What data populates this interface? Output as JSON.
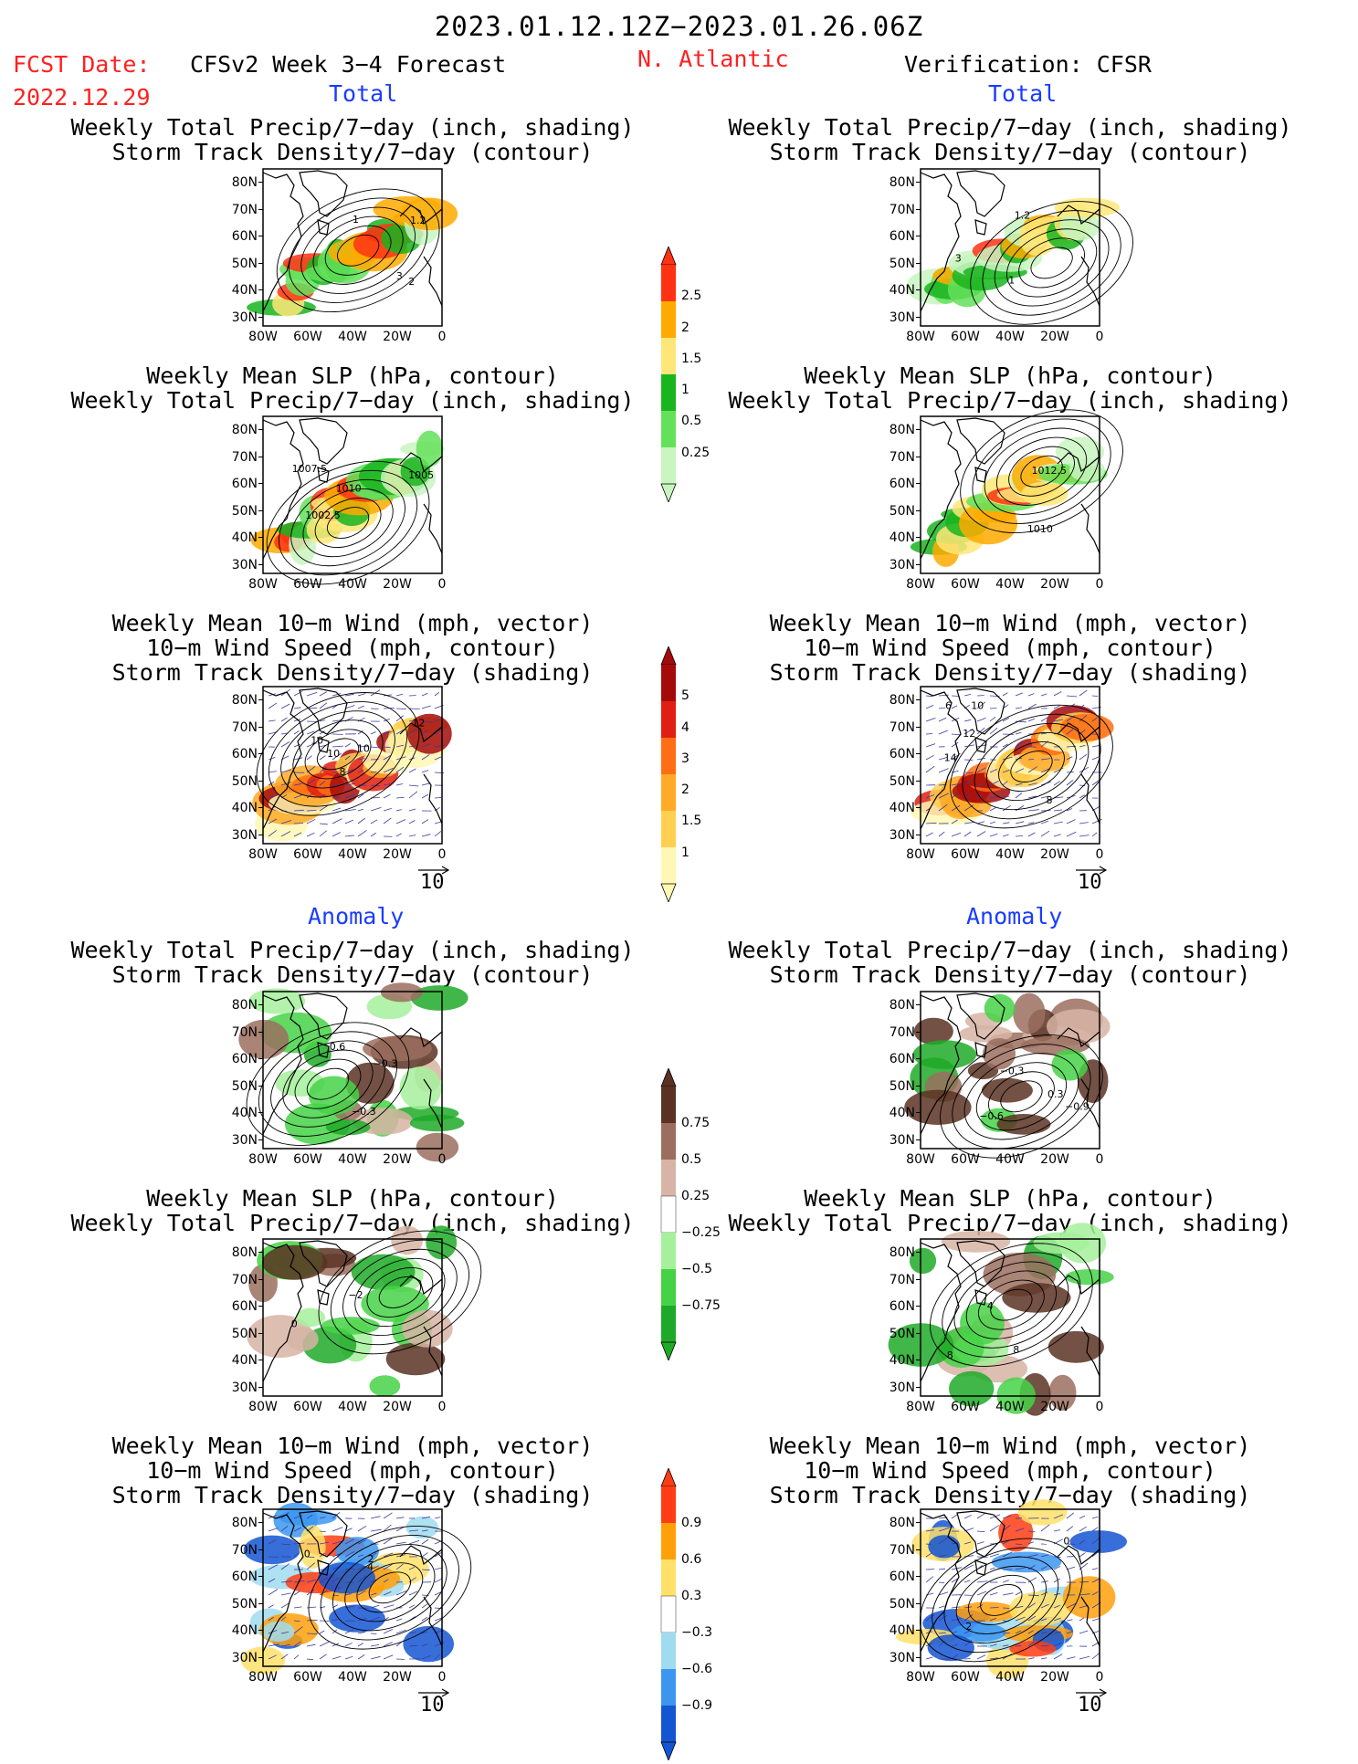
{
  "header": {
    "date_range": "2023.01.12.12Z−2023.01.26.06Z",
    "fcst_label": "FCST Date:",
    "fcst_date": "2022.12.29",
    "forecast_title": "CFSv2 Week 3−4 Forecast",
    "region": "N. Atlantic",
    "verification": "Verification: CFSR"
  },
  "section_labels": {
    "total": "Total",
    "anomaly": "Anomaly"
  },
  "panel_titles": {
    "precip_storm": [
      "Weekly Total Precip/7−day (inch, shading)",
      "Storm Track Density/7−day (contour)"
    ],
    "slp_precip": [
      "Weekly Mean SLP (hPa, contour)",
      "Weekly Total Precip/7−day (inch, shading)"
    ],
    "wind_storm": [
      "Weekly Mean 10−m Wind (mph, vector)",
      "10−m Wind Speed (mph, contour)",
      "Storm Track Density/7−day (shading)"
    ]
  },
  "axes": {
    "x_ticks": [
      "80W",
      "60W",
      "40W",
      "20W",
      "0"
    ],
    "y_ticks": [
      "80N",
      "70N",
      "60N",
      "50N",
      "40N",
      "30N"
    ]
  },
  "vector_reference": "10",
  "colors": {
    "red_text": "#ff2020",
    "blue_text": "#1a3cff",
    "precip_total": [
      "#c8f5c0",
      "#64e15a",
      "#19b41e",
      "#ffe678",
      "#ffaa00",
      "#ff3214"
    ],
    "storm_total": [
      "#fff8b4",
      "#ffd050",
      "#ffaa28",
      "#ff6e14",
      "#e11e14",
      "#a50a0a"
    ],
    "precip_anom": [
      "#5a3223",
      "#9b6e5f",
      "#d7b4a5",
      "#ffffff",
      "#a5f09b",
      "#46d246",
      "#1eaa28"
    ],
    "storm_anom": [
      "#1455d2",
      "#3c96f0",
      "#a0dcf0",
      "#ffffff",
      "#ffe169",
      "#ffa00a",
      "#ff3c14"
    ]
  },
  "colorbars": [
    {
      "name": "precip-total",
      "labels": [
        "2.5",
        "2",
        "1.5",
        "1",
        "0.5",
        "0.25"
      ]
    },
    {
      "name": "storm-density-total",
      "labels": [
        "5",
        "4",
        "3",
        "2",
        "1.5",
        "1"
      ]
    },
    {
      "name": "precip-anomaly",
      "labels": [
        "0.75",
        "0.5",
        "0.25",
        "−0.25",
        "−0.5",
        "−0.75"
      ]
    },
    {
      "name": "storm-density-anomaly",
      "labels": [
        "0.9",
        "0.6",
        "0.3",
        "−0.3",
        "−0.6",
        "−0.9"
      ]
    }
  ],
  "contour_labels": {
    "fc_total_precip": [
      "3",
      "1.2",
      "2",
      "1"
    ],
    "obs_total_precip": [
      "3",
      "1",
      "1.2"
    ],
    "fc_total_slp": [
      "1010",
      "1007.5",
      "1002.5",
      "1005"
    ],
    "obs_total_slp": [
      "1012.5",
      "1010"
    ],
    "fc_total_wind": [
      "12",
      "10",
      "8",
      "10",
      "10"
    ],
    "obs_total_wind": [
      "10",
      "8",
      "6",
      "14",
      "12"
    ],
    "fc_anom_precip": [
      "−0.3",
      "0.6",
      "−0.3"
    ],
    "obs_anom_precip": [
      "0.3",
      "−0.9",
      "−0.6",
      "−0.3"
    ],
    "fc_anom_slp": [
      "0",
      "−2"
    ],
    "obs_anom_slp": [
      "4",
      "8",
      "8"
    ],
    "fc_anom_wind": [
      "2",
      "4",
      "0"
    ],
    "obs_anom_wind": [
      "0",
      "2"
    ]
  },
  "chart_data": [
    {
      "id": "fc-total-precip",
      "type": "heatmap",
      "title": [
        "Weekly Total Precip/7−day (inch, shading)",
        "Storm Track Density/7−day (contour)"
      ],
      "shading": "precip_total",
      "xlim": [
        "80W",
        "0"
      ],
      "ylim": [
        "25N",
        "85N"
      ]
    },
    {
      "id": "obs-total-precip",
      "type": "heatmap",
      "title": [
        "Weekly Total Precip/7−day (inch, shading)",
        "Storm Track Density/7−day (contour)"
      ],
      "shading": "precip_total",
      "xlim": [
        "80W",
        "0"
      ],
      "ylim": [
        "25N",
        "85N"
      ]
    },
    {
      "id": "fc-total-slp",
      "type": "heatmap",
      "title": [
        "Weekly Mean SLP (hPa, contour)",
        "Weekly Total Precip/7−day (inch, shading)"
      ],
      "shading": "precip_total",
      "xlim": [
        "80W",
        "0"
      ],
      "ylim": [
        "25N",
        "85N"
      ]
    },
    {
      "id": "obs-total-slp",
      "type": "heatmap",
      "title": [
        "Weekly Mean SLP (hPa, contour)",
        "Weekly Total Precip/7−day (inch, shading)"
      ],
      "shading": "precip_total",
      "xlim": [
        "80W",
        "0"
      ],
      "ylim": [
        "25N",
        "85N"
      ]
    },
    {
      "id": "fc-total-wind",
      "type": "heatmap",
      "title": [
        "Weekly Mean 10−m Wind (mph, vector)",
        "10−m Wind Speed (mph, contour)",
        "Storm Track Density/7−day (shading)"
      ],
      "shading": "storm_total",
      "xlim": [
        "80W",
        "0"
      ],
      "ylim": [
        "25N",
        "85N"
      ]
    },
    {
      "id": "obs-total-wind",
      "type": "heatmap",
      "title": [
        "Weekly Mean 10−m Wind (mph, vector)",
        "10−m Wind Speed (mph, contour)",
        "Storm Track Density/7−day (shading)"
      ],
      "shading": "storm_total",
      "xlim": [
        "80W",
        "0"
      ],
      "ylim": [
        "25N",
        "85N"
      ]
    },
    {
      "id": "fc-anom-precip",
      "type": "heatmap",
      "title": [
        "Weekly Total Precip/7−day (inch, shading)",
        "Storm Track Density/7−day (contour)"
      ],
      "shading": "precip_anom",
      "xlim": [
        "80W",
        "0"
      ],
      "ylim": [
        "25N",
        "85N"
      ]
    },
    {
      "id": "obs-anom-precip",
      "type": "heatmap",
      "title": [
        "Weekly Total Precip/7−day (inch, shading)",
        "Storm Track Density/7−day (contour)"
      ],
      "shading": "precip_anom",
      "xlim": [
        "80W",
        "0"
      ],
      "ylim": [
        "25N",
        "85N"
      ]
    },
    {
      "id": "fc-anom-slp",
      "type": "heatmap",
      "title": [
        "Weekly Mean SLP (hPa, contour)",
        "Weekly Total Precip/7−day (inch, shading)"
      ],
      "shading": "precip_anom",
      "xlim": [
        "80W",
        "0"
      ],
      "ylim": [
        "25N",
        "85N"
      ]
    },
    {
      "id": "obs-anom-slp",
      "type": "heatmap",
      "title": [
        "Weekly Mean SLP (hPa, contour)",
        "Weekly Total Precip/7−day (inch, shading)"
      ],
      "shading": "precip_anom",
      "xlim": [
        "80W",
        "0"
      ],
      "ylim": [
        "25N",
        "85N"
      ]
    },
    {
      "id": "fc-anom-wind",
      "type": "heatmap",
      "title": [
        "Weekly Mean 10−m Wind (mph, vector)",
        "10−m Wind Speed (mph, contour)",
        "Storm Track Density/7−day (shading)"
      ],
      "shading": "storm_anom",
      "xlim": [
        "80W",
        "0"
      ],
      "ylim": [
        "25N",
        "85N"
      ]
    },
    {
      "id": "obs-anom-wind",
      "type": "heatmap",
      "title": [
        "Weekly Mean 10−m Wind (mph, vector)",
        "10−m Wind Speed (mph, contour)",
        "Storm Track Density/7−day (shading)"
      ],
      "shading": "storm_anom",
      "xlim": [
        "80W",
        "0"
      ],
      "ylim": [
        "25N",
        "85N"
      ]
    }
  ]
}
